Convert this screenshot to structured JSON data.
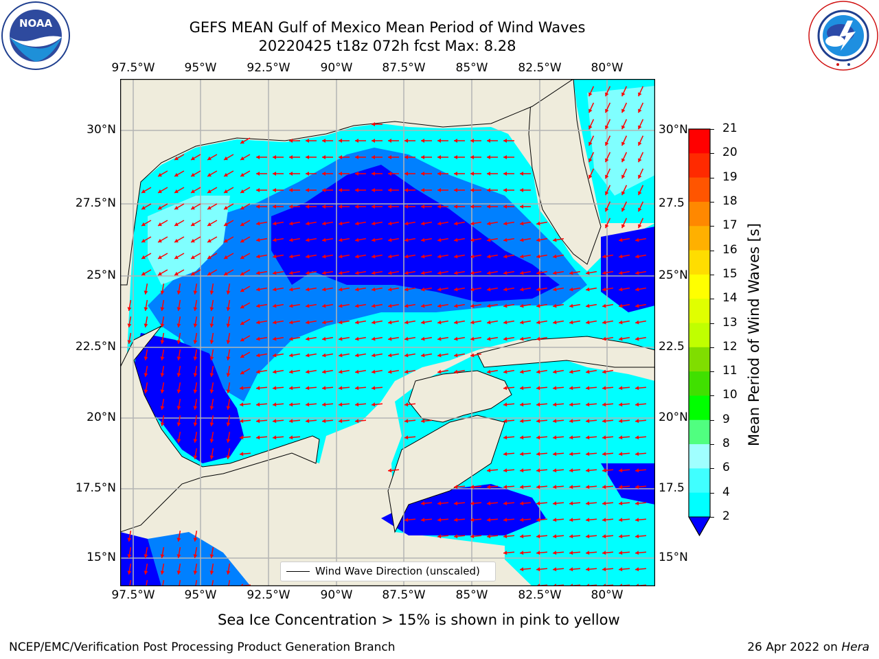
{
  "title": {
    "line1": "GEFS MEAN Gulf of Mexico Mean Period of Wind Waves",
    "line2": "20220425 t18z 072h fcst   Max: 8.28"
  },
  "logos": {
    "left": "NOAA",
    "left_ring": "NATIONAL OCEANIC AND ATMOSPHERIC ADMINISTRATION",
    "left_ring_bottom": "U.S. DEPARTMENT OF COMMERCE",
    "right_ring": "NATIONAL WEATHER SERVICE"
  },
  "map": {
    "lon_ticks": [
      "97.5°W",
      "95°W",
      "92.5°W",
      "90°W",
      "87.5°W",
      "85°W",
      "82.5°W",
      "80°W"
    ],
    "lat_ticks": [
      "30°N",
      "27.5°N",
      "25°N",
      "22.5°N",
      "20°N",
      "17.5°N",
      "15°N"
    ],
    "lat_ticks_right": [
      "30°N",
      "27.5",
      "25°N",
      "22.5",
      "20°N",
      "17.5",
      "15°N"
    ],
    "legend": "Wind Wave Direction (unscaled)",
    "colors": {
      "land": "#efecdc",
      "grid": "#b4b4b4",
      "arrows": "#ff0000",
      "period_2_4": "#0000ff",
      "period_4_6": "#0080ff",
      "period_6_8": "#00ffff",
      "period_8_9": "#80ffff"
    }
  },
  "colorbar": {
    "label": "Mean Period of Wind Waves [s]",
    "ticks": [
      "21",
      "20",
      "19",
      "18",
      "17",
      "16",
      "15",
      "14",
      "13",
      "12",
      "11",
      "10",
      "9",
      "8",
      "6",
      "4",
      "2"
    ],
    "colors": [
      "#0000ff",
      "#0080ff",
      "#00ffff",
      "#40ffff",
      "#a0ffff",
      "#50ff80",
      "#00ff00",
      "#40e000",
      "#80dd00",
      "#c0ff00",
      "#e0ff00",
      "#ffff00",
      "#ffdd00",
      "#ffb000",
      "#ff8800",
      "#ff5500",
      "#ff2a00",
      "#ff0000"
    ]
  },
  "caption": "Sea Ice Concentration > 15% is shown in pink to yellow",
  "footer": {
    "left": "NCEP/EMC/Verification Post Processing Product Generation Branch",
    "right_date": "26 Apr 2022 on ",
    "right_host": "Hera"
  }
}
